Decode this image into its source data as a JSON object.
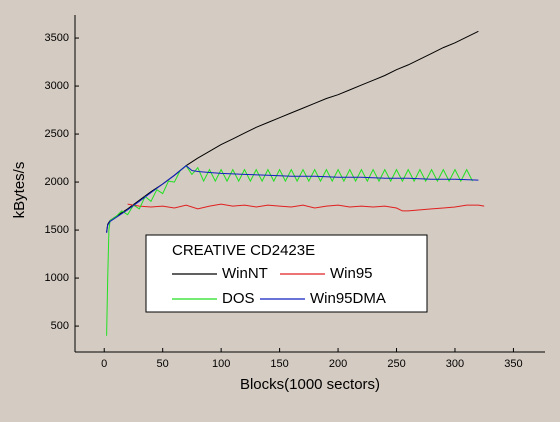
{
  "chart_data": {
    "type": "line",
    "xlabel": "Blocks(1000 sectors)",
    "ylabel": "kBytes/s",
    "legend_title": "CREATIVE CD2423E",
    "xlim": [
      -25,
      377
    ],
    "ylim": [
      230,
      3740
    ],
    "xticks": [
      0,
      50,
      100,
      150,
      200,
      250,
      300,
      350
    ],
    "yticks": [
      500,
      1000,
      1500,
      2000,
      2500,
      3000,
      3500
    ],
    "series": [
      {
        "name": "WinNT",
        "color": "#000000",
        "x": [
          2,
          3,
          5,
          10,
          20,
          30,
          40,
          50,
          60,
          70,
          80,
          90,
          100,
          110,
          120,
          130,
          140,
          150,
          160,
          170,
          180,
          190,
          200,
          210,
          220,
          230,
          240,
          250,
          260,
          270,
          280,
          290,
          300,
          310,
          320
        ],
        "values": [
          1480,
          1560,
          1600,
          1640,
          1720,
          1810,
          1900,
          1980,
          2070,
          2170,
          2250,
          2320,
          2390,
          2450,
          2510,
          2570,
          2620,
          2670,
          2720,
          2770,
          2820,
          2870,
          2910,
          2960,
          3010,
          3060,
          3110,
          3170,
          3220,
          3280,
          3340,
          3400,
          3450,
          3510,
          3570
        ]
      },
      {
        "name": "Win95",
        "color": "#e02020",
        "x": [
          20,
          30,
          40,
          50,
          60,
          70,
          80,
          90,
          100,
          110,
          120,
          130,
          140,
          150,
          160,
          170,
          180,
          190,
          200,
          210,
          220,
          230,
          240,
          250,
          255,
          260,
          270,
          280,
          290,
          300,
          310,
          320,
          325
        ],
        "values": [
          1770,
          1750,
          1740,
          1750,
          1730,
          1760,
          1720,
          1750,
          1770,
          1750,
          1760,
          1740,
          1760,
          1750,
          1740,
          1760,
          1730,
          1750,
          1760,
          1740,
          1750,
          1740,
          1750,
          1730,
          1700,
          1700,
          1710,
          1720,
          1730,
          1740,
          1760,
          1760,
          1750
        ]
      },
      {
        "name": "DOS",
        "color": "#22e022",
        "x": [
          2,
          3,
          4,
          5,
          10,
          15,
          20,
          25,
          30,
          35,
          40,
          45,
          50,
          55,
          60,
          65,
          70,
          75,
          80,
          85,
          90,
          95,
          100,
          105,
          110,
          115,
          120,
          125,
          130,
          135,
          140,
          145,
          150,
          155,
          160,
          165,
          170,
          175,
          180,
          185,
          190,
          195,
          200,
          205,
          210,
          215,
          220,
          225,
          230,
          235,
          240,
          245,
          250,
          255,
          260,
          265,
          270,
          275,
          280,
          285,
          290,
          295,
          300,
          305,
          310,
          315
        ],
        "values": [
          400,
          1000,
          1500,
          1600,
          1640,
          1700,
          1660,
          1760,
          1720,
          1850,
          1800,
          1920,
          1880,
          2010,
          2000,
          2120,
          2170,
          2080,
          2150,
          2010,
          2130,
          2010,
          2130,
          2010,
          2130,
          2010,
          2130,
          2010,
          2130,
          2010,
          2130,
          2010,
          2130,
          2010,
          2130,
          2010,
          2130,
          2010,
          2130,
          2010,
          2130,
          2010,
          2130,
          2010,
          2130,
          2010,
          2130,
          2010,
          2130,
          2010,
          2130,
          2010,
          2130,
          2010,
          2130,
          2010,
          2130,
          2010,
          2130,
          2010,
          2130,
          2010,
          2130,
          2010,
          2130,
          2010
        ]
      },
      {
        "name": "Win95DMA",
        "color": "#1020c0",
        "x": [
          2,
          3,
          5,
          10,
          20,
          30,
          40,
          50,
          60,
          70,
          75,
          80,
          90,
          100,
          120,
          140,
          160,
          180,
          200,
          220,
          240,
          260,
          280,
          300,
          320
        ],
        "values": [
          1470,
          1550,
          1590,
          1630,
          1710,
          1800,
          1890,
          1980,
          2070,
          2170,
          2120,
          2110,
          2100,
          2090,
          2080,
          2070,
          2060,
          2060,
          2050,
          2050,
          2040,
          2040,
          2030,
          2030,
          2020
        ]
      }
    ]
  }
}
